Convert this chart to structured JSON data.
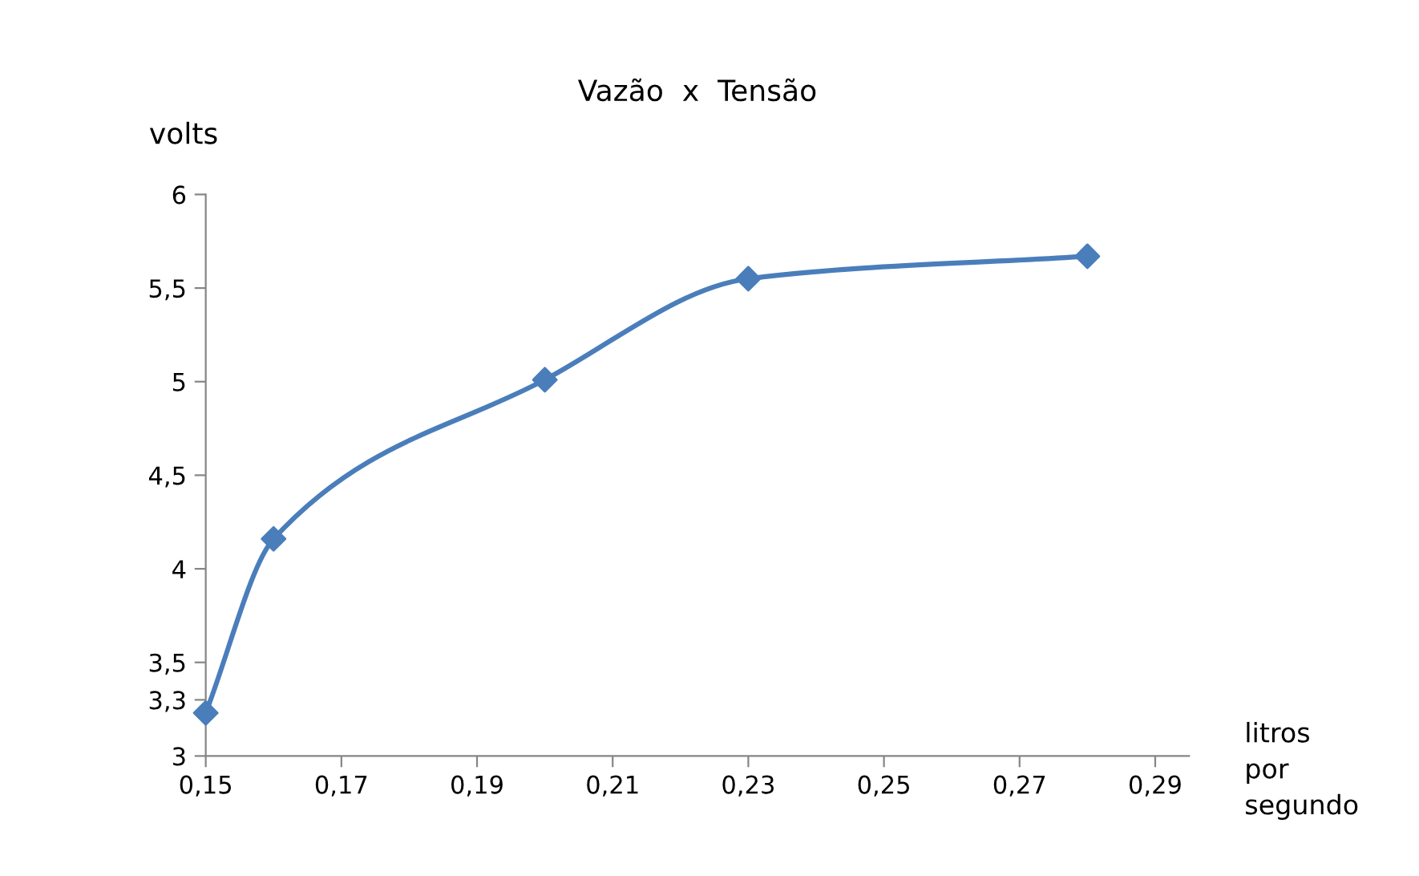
{
  "chart_data": {
    "type": "line",
    "title": "Vazão  x  Tensão",
    "xlabel": "litros\npor\nsegundo",
    "ylabel": "volts",
    "x": [
      0.15,
      0.16,
      0.2,
      0.23,
      0.28
    ],
    "series": [
      {
        "color": "#4a7ebb",
        "values": [
          3.23,
          4.16,
          5.01,
          5.55,
          5.67
        ]
      }
    ],
    "marker": "diamond",
    "line_style": "solid",
    "grid": false,
    "xlim": [
      0.15,
      0.295
    ],
    "ylim": [
      3,
      6
    ],
    "xticks": [
      {
        "value": 0.15,
        "label": "0,15"
      },
      {
        "value": 0.17,
        "label": "0,17"
      },
      {
        "value": 0.19,
        "label": "0,19"
      },
      {
        "value": 0.21,
        "label": "0,21"
      },
      {
        "value": 0.23,
        "label": "0,23"
      },
      {
        "value": 0.25,
        "label": "0,25"
      },
      {
        "value": 0.27,
        "label": "0,27"
      },
      {
        "value": 0.29,
        "label": "0,29"
      }
    ],
    "yticks": [
      3,
      {
        "value": 3.3,
        "label": "3,3"
      },
      {
        "value": 3.5,
        "label": "3,5"
      },
      4,
      {
        "value": 4.5,
        "label": "4,5"
      },
      5,
      {
        "value": 5.5,
        "label": "5,5"
      },
      6
    ]
  }
}
